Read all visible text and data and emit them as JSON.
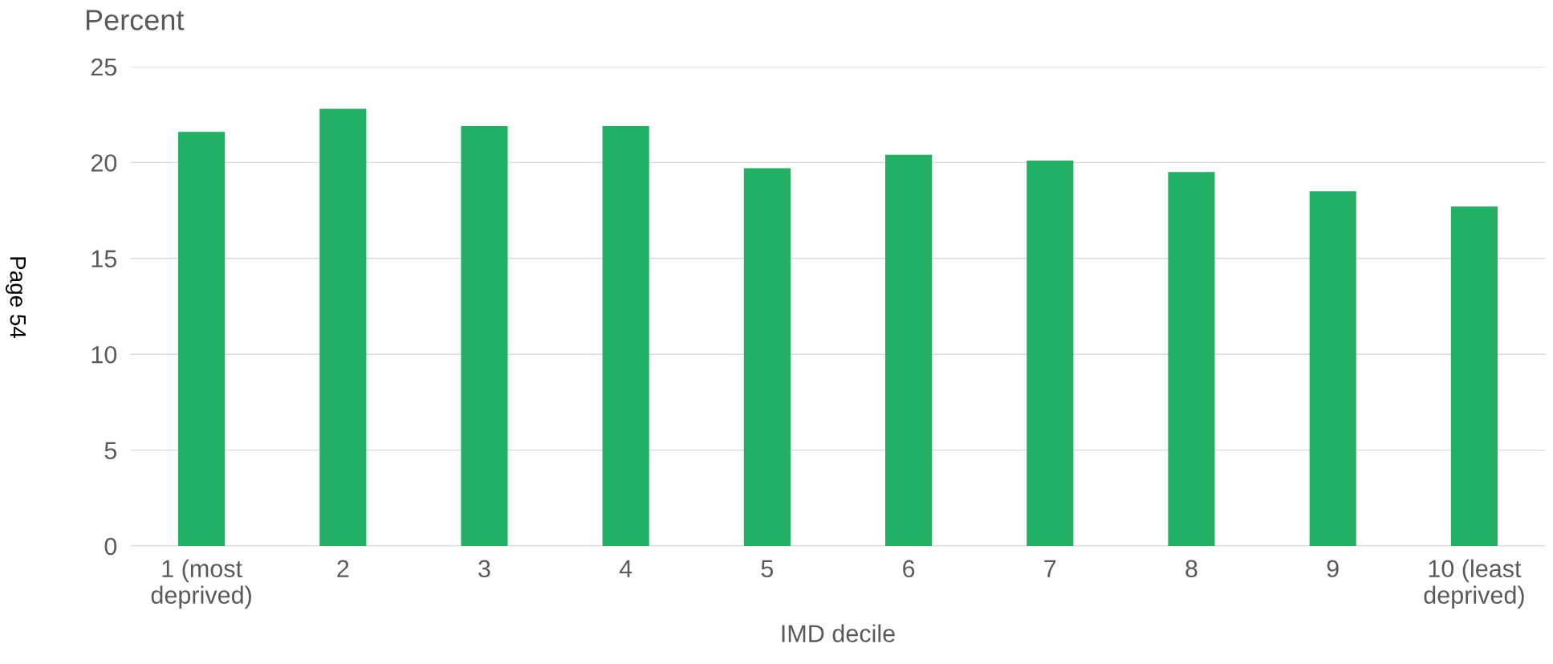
{
  "chart_data": {
    "type": "bar",
    "ylabel": "Percent",
    "xlabel": "IMD decile",
    "categories": [
      "1 (most\ndeprived)",
      "2",
      "3",
      "4",
      "5",
      "6",
      "7",
      "8",
      "9",
      "10 (least\ndeprived)"
    ],
    "values": [
      21.6,
      22.8,
      21.9,
      21.9,
      19.7,
      20.4,
      20.1,
      19.5,
      18.5,
      17.7
    ],
    "color": "#21b064",
    "ylim": [
      0,
      25
    ],
    "yticks": [
      0,
      5,
      10,
      15,
      20,
      25
    ],
    "grid": "y",
    "annotations": [
      "Page 54"
    ]
  }
}
